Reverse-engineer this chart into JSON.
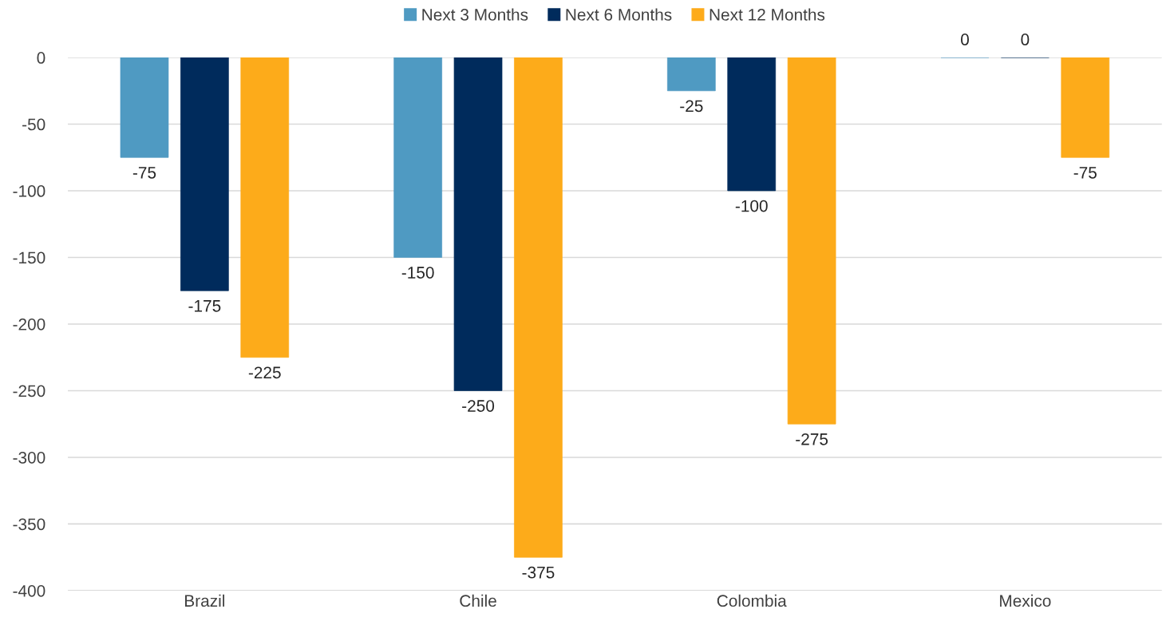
{
  "chart_data": {
    "type": "bar",
    "categories": [
      "Brazil",
      "Chile",
      "Colombia",
      "Mexico"
    ],
    "series": [
      {
        "name": "Next 3 Months",
        "color": "#4f9ac2",
        "values": [
          -75,
          -150,
          -25,
          0
        ]
      },
      {
        "name": "Next 6 Months",
        "color": "#002b5c",
        "values": [
          -175,
          -250,
          -100,
          0
        ]
      },
      {
        "name": "Next 12 Months",
        "color": "#fdab1a",
        "values": [
          -225,
          -375,
          -275,
          -75
        ]
      }
    ],
    "ylim": [
      -400,
      0
    ],
    "yticks": [
      -400,
      -350,
      -300,
      -250,
      -200,
      -150,
      -100,
      -50,
      0
    ],
    "grid": "y",
    "legend": "top",
    "data_labels": true
  }
}
